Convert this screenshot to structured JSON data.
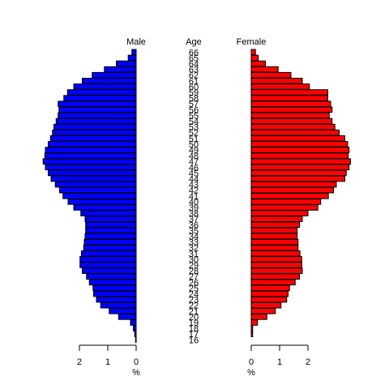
{
  "chart_data": {
    "type": "bar",
    "subtype": "population-pyramid",
    "male_label": "Male",
    "female_label": "Female",
    "age_label": "Age",
    "male_axis_unit": "%",
    "female_axis_unit": "%",
    "male_color": "#0000ff",
    "female_color": "#ff0000",
    "male_ticks": [
      2,
      1,
      0
    ],
    "female_ticks": [
      0,
      1,
      2
    ],
    "x_max": 2.4,
    "ages": [
      16,
      17,
      18,
      19,
      20,
      21,
      22,
      23,
      24,
      25,
      26,
      27,
      28,
      29,
      30,
      31,
      32,
      33,
      34,
      35,
      36,
      37,
      38,
      39,
      40,
      41,
      42,
      43,
      44,
      45,
      46,
      47,
      48,
      49,
      50,
      51,
      52,
      53,
      54,
      55,
      56,
      57,
      58,
      59,
      60,
      61,
      62,
      63,
      64,
      65,
      66
    ],
    "age_tick_labels": [
      "16",
      "17",
      "18",
      "19",
      "20",
      "21",
      "22",
      "23",
      "24",
      "25",
      "26",
      "27",
      "28",
      "29",
      "30",
      "31",
      "32",
      "33",
      "34",
      "35",
      "36",
      "37",
      "38",
      "39",
      "40",
      "41",
      "42",
      "43",
      "44",
      "45",
      "46",
      "47",
      "48",
      "49",
      "50",
      "51",
      "52",
      "53",
      "54",
      "55",
      "56",
      "57",
      "58",
      "59",
      "60",
      "61",
      "62",
      "63",
      "64",
      "65",
      "66"
    ],
    "series": [
      {
        "name": "Male",
        "values": [
          0.02,
          0.05,
          0.1,
          0.2,
          0.62,
          0.95,
          1.25,
          1.4,
          1.5,
          1.52,
          1.65,
          1.75,
          1.9,
          1.98,
          1.98,
          1.93,
          1.85,
          1.83,
          1.8,
          1.78,
          1.78,
          1.8,
          1.95,
          2.2,
          2.4,
          2.58,
          2.7,
          2.85,
          3.0,
          3.1,
          3.2,
          3.28,
          3.22,
          3.2,
          3.1,
          3.02,
          2.95,
          2.9,
          2.82,
          2.75,
          2.72,
          2.75,
          2.55,
          2.42,
          2.2,
          1.9,
          1.55,
          1.12,
          0.7,
          0.28,
          0.15
        ]
      },
      {
        "name": "Female",
        "values": [
          0.0,
          0.05,
          0.05,
          0.22,
          0.55,
          0.85,
          1.05,
          1.25,
          1.3,
          1.35,
          1.55,
          1.7,
          1.8,
          1.78,
          1.78,
          1.72,
          1.65,
          1.65,
          1.62,
          1.62,
          1.7,
          1.8,
          2.0,
          2.35,
          2.45,
          2.72,
          2.9,
          3.0,
          3.3,
          3.35,
          3.45,
          3.5,
          3.42,
          3.45,
          3.4,
          3.3,
          3.1,
          2.95,
          2.85,
          2.75,
          2.85,
          2.8,
          2.7,
          2.7,
          2.05,
          1.8,
          1.4,
          0.95,
          0.5,
          0.25,
          0.15
        ]
      }
    ]
  }
}
